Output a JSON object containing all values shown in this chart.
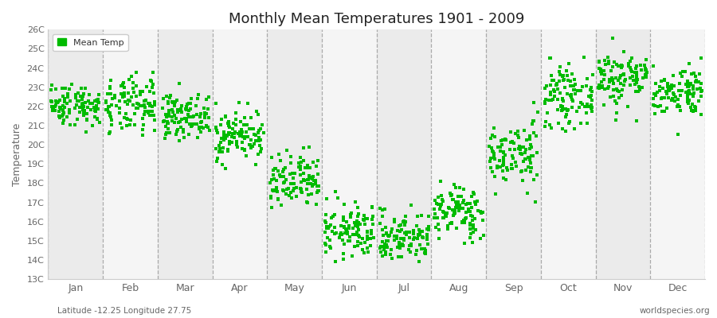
{
  "title": "Monthly Mean Temperatures 1901 - 2009",
  "ylabel": "Temperature",
  "footnote_left": "Latitude -12.25 Longitude 27.75",
  "footnote_right": "worldspecies.org",
  "legend_label": "Mean Temp",
  "dot_color": "#00BB00",
  "background_color": "#ffffff",
  "band_color_odd": "#ebebeb",
  "band_color_even": "#f5f5f5",
  "grid_line_color": "#999999",
  "ylim": [
    13,
    26
  ],
  "ytick_labels": [
    "13C",
    "14C",
    "15C",
    "16C",
    "17C",
    "18C",
    "19C",
    "20C",
    "21C",
    "22C",
    "23C",
    "24C",
    "25C",
    "26C"
  ],
  "ytick_values": [
    13,
    14,
    15,
    16,
    17,
    18,
    19,
    20,
    21,
    22,
    23,
    24,
    25,
    26
  ],
  "month_names": [
    "Jan",
    "Feb",
    "Mar",
    "Apr",
    "May",
    "Jun",
    "Jul",
    "Aug",
    "Sep",
    "Oct",
    "Nov",
    "Dec"
  ],
  "monthly_means": [
    22.1,
    22.0,
    21.5,
    20.5,
    18.0,
    15.5,
    15.2,
    16.5,
    19.5,
    22.5,
    23.5,
    22.8
  ],
  "monthly_stds": [
    0.55,
    0.75,
    0.55,
    0.65,
    0.75,
    0.7,
    0.65,
    0.7,
    0.85,
    0.75,
    0.75,
    0.65
  ],
  "n_years": 109,
  "seed": 42,
  "marker_size": 7,
  "dpi": 100
}
